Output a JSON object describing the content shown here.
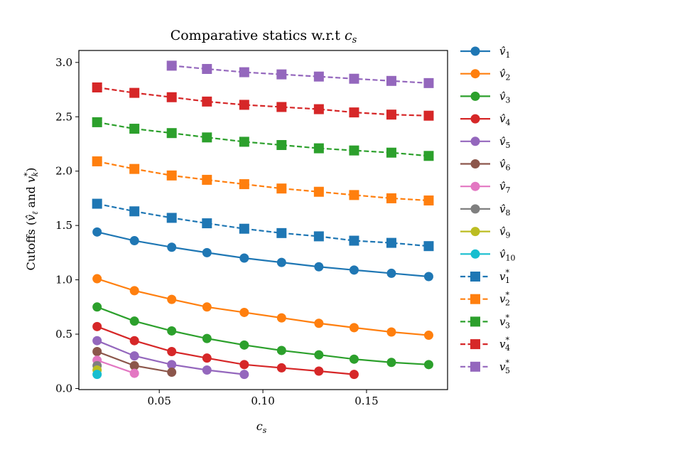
{
  "chart_data": {
    "type": "line",
    "title": "Comparative statics w.r.t c_s",
    "title_prefix": "Comparative statics w.r.t ",
    "title_var": "c",
    "title_sub": "s",
    "xlabel": "c",
    "xlabel_sub": "s",
    "ylabel": "Cutoffs (v̂ℓ and v*k)",
    "ylabel_parts": {
      "pre": "Cutoffs (",
      "v1": "v̂",
      "sub1": "ℓ",
      "mid": " and ",
      "v2": "v",
      "sup2": "*",
      "sub2": "k",
      "post": ")"
    },
    "xlim": [
      0.0112,
      0.1891
    ],
    "ylim": [
      -0.01,
      3.11
    ],
    "xticks": [
      0.05,
      0.1,
      0.15
    ],
    "xtick_labels": [
      "0.05",
      "0.10",
      "0.15"
    ],
    "yticks": [
      0.0,
      0.5,
      1.0,
      1.5,
      2.0,
      2.5,
      3.0
    ],
    "ytick_labels": [
      "0.0",
      "0.5",
      "1.0",
      "1.5",
      "2.0",
      "2.5",
      "3.0"
    ],
    "grid": false,
    "legend_position": "outside-right",
    "series": [
      {
        "name": "v̂1",
        "symbol": "v̂",
        "sub": "1",
        "sup": "",
        "color": "#1f77b4",
        "marker": "circle",
        "dash": false,
        "x": [
          0.02,
          0.038,
          0.056,
          0.073,
          0.091,
          0.109,
          0.127,
          0.144,
          0.162,
          0.18
        ],
        "y": [
          1.44,
          1.36,
          1.3,
          1.25,
          1.2,
          1.16,
          1.12,
          1.09,
          1.06,
          1.03
        ]
      },
      {
        "name": "v̂2",
        "symbol": "v̂",
        "sub": "2",
        "sup": "",
        "color": "#ff7f0e",
        "marker": "circle",
        "dash": false,
        "x": [
          0.02,
          0.038,
          0.056,
          0.073,
          0.091,
          0.109,
          0.127,
          0.144,
          0.162,
          0.18
        ],
        "y": [
          1.01,
          0.9,
          0.82,
          0.75,
          0.7,
          0.65,
          0.6,
          0.56,
          0.52,
          0.49
        ]
      },
      {
        "name": "v̂3",
        "symbol": "v̂",
        "sub": "3",
        "sup": "",
        "color": "#2ca02c",
        "marker": "circle",
        "dash": false,
        "x": [
          0.02,
          0.038,
          0.056,
          0.073,
          0.091,
          0.109,
          0.127,
          0.144,
          0.162,
          0.18
        ],
        "y": [
          0.75,
          0.62,
          0.53,
          0.46,
          0.4,
          0.35,
          0.31,
          0.27,
          0.24,
          0.22
        ]
      },
      {
        "name": "v̂4",
        "symbol": "v̂",
        "sub": "4",
        "sup": "",
        "color": "#d62728",
        "marker": "circle",
        "dash": false,
        "x": [
          0.02,
          0.038,
          0.056,
          0.073,
          0.091,
          0.109,
          0.127,
          0.144
        ],
        "y": [
          0.57,
          0.44,
          0.34,
          0.28,
          0.22,
          0.19,
          0.16,
          0.13
        ]
      },
      {
        "name": "v̂5",
        "symbol": "v̂",
        "sub": "5",
        "sup": "",
        "color": "#9467bd",
        "marker": "circle",
        "dash": false,
        "x": [
          0.02,
          0.038,
          0.056,
          0.073,
          0.091
        ],
        "y": [
          0.44,
          0.3,
          0.22,
          0.17,
          0.13
        ]
      },
      {
        "name": "v̂6",
        "symbol": "v̂",
        "sub": "6",
        "sup": "",
        "color": "#8c564b",
        "marker": "circle",
        "dash": false,
        "x": [
          0.02,
          0.038,
          0.056
        ],
        "y": [
          0.34,
          0.21,
          0.15
        ]
      },
      {
        "name": "v̂7",
        "symbol": "v̂",
        "sub": "7",
        "sup": "",
        "color": "#e377c2",
        "marker": "circle",
        "dash": false,
        "x": [
          0.02,
          0.038
        ],
        "y": [
          0.26,
          0.14
        ]
      },
      {
        "name": "v̂8",
        "symbol": "v̂",
        "sub": "8",
        "sup": "",
        "color": "#7f7f7f",
        "marker": "circle",
        "dash": false,
        "x": [
          0.02
        ],
        "y": [
          0.21
        ]
      },
      {
        "name": "v̂9",
        "symbol": "v̂",
        "sub": "9",
        "sup": "",
        "color": "#bcbd22",
        "marker": "circle",
        "dash": false,
        "x": [
          0.02
        ],
        "y": [
          0.17
        ]
      },
      {
        "name": "v̂10",
        "symbol": "v̂",
        "sub": "10",
        "sup": "",
        "color": "#17becf",
        "marker": "circle",
        "dash": false,
        "x": [
          0.02
        ],
        "y": [
          0.13
        ]
      },
      {
        "name": "v1*",
        "symbol": "v",
        "sub": "1",
        "sup": "*",
        "color": "#1f77b4",
        "marker": "square",
        "dash": true,
        "x": [
          0.02,
          0.038,
          0.056,
          0.073,
          0.091,
          0.109,
          0.127,
          0.144,
          0.162,
          0.18
        ],
        "y": [
          1.7,
          1.63,
          1.57,
          1.52,
          1.47,
          1.43,
          1.4,
          1.36,
          1.34,
          1.31
        ]
      },
      {
        "name": "v2*",
        "symbol": "v",
        "sub": "2",
        "sup": "*",
        "color": "#ff7f0e",
        "marker": "square",
        "dash": true,
        "x": [
          0.02,
          0.038,
          0.056,
          0.073,
          0.091,
          0.109,
          0.127,
          0.144,
          0.162,
          0.18
        ],
        "y": [
          2.09,
          2.02,
          1.96,
          1.92,
          1.88,
          1.84,
          1.81,
          1.78,
          1.75,
          1.73
        ]
      },
      {
        "name": "v3*",
        "symbol": "v",
        "sub": "3",
        "sup": "*",
        "color": "#2ca02c",
        "marker": "square",
        "dash": true,
        "x": [
          0.02,
          0.038,
          0.056,
          0.073,
          0.091,
          0.109,
          0.127,
          0.144,
          0.162,
          0.18
        ],
        "y": [
          2.45,
          2.39,
          2.35,
          2.31,
          2.27,
          2.24,
          2.21,
          2.19,
          2.17,
          2.14
        ]
      },
      {
        "name": "v4*",
        "symbol": "v",
        "sub": "4",
        "sup": "*",
        "color": "#d62728",
        "marker": "square",
        "dash": true,
        "x": [
          0.02,
          0.038,
          0.056,
          0.073,
          0.091,
          0.109,
          0.127,
          0.144,
          0.162,
          0.18
        ],
        "y": [
          2.77,
          2.72,
          2.68,
          2.64,
          2.61,
          2.59,
          2.57,
          2.54,
          2.52,
          2.51
        ]
      },
      {
        "name": "v5*",
        "symbol": "v",
        "sub": "5",
        "sup": "*",
        "color": "#9467bd",
        "marker": "square",
        "dash": true,
        "x": [
          0.056,
          0.073,
          0.091,
          0.109,
          0.127,
          0.144,
          0.162,
          0.18
        ],
        "y": [
          2.97,
          2.94,
          2.91,
          2.89,
          2.87,
          2.85,
          2.83,
          2.81
        ]
      }
    ]
  }
}
